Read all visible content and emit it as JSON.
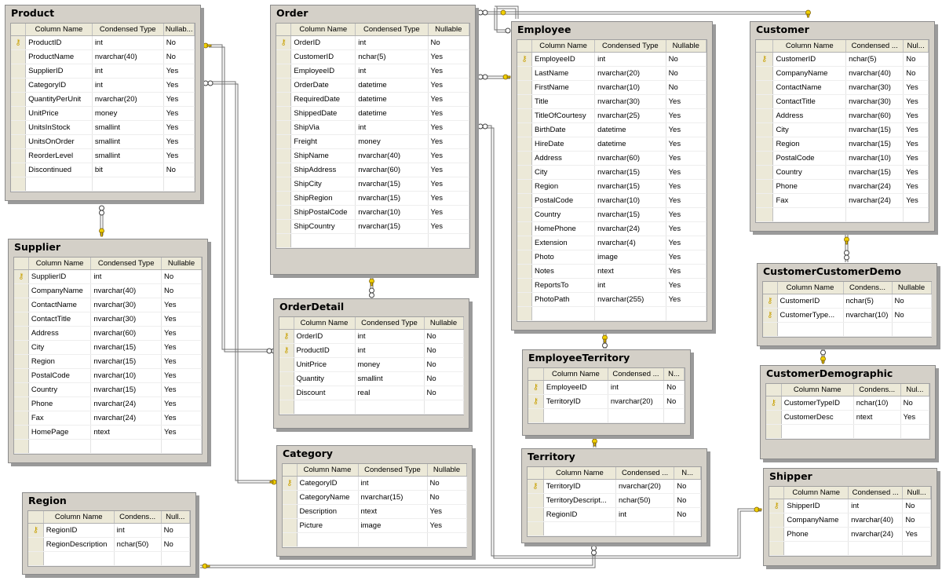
{
  "headers": [
    "Column Name",
    "Condensed Type",
    "Nullable"
  ],
  "key_icon": "primary-key-icon",
  "tables": [
    {
      "id": "product",
      "title": "Product",
      "headers": [
        "Column Name",
        "Condensed Type",
        "Nullab..."
      ],
      "rows": [
        [
          "ProductID",
          "int",
          "No",
          1
        ],
        [
          "ProductName",
          "nvarchar(40)",
          "No",
          0
        ],
        [
          "SupplierID",
          "int",
          "Yes",
          0
        ],
        [
          "CategoryID",
          "int",
          "Yes",
          0
        ],
        [
          "QuantityPerUnit",
          "nvarchar(20)",
          "Yes",
          0
        ],
        [
          "UnitPrice",
          "money",
          "Yes",
          0
        ],
        [
          "UnitsInStock",
          "smallint",
          "Yes",
          0
        ],
        [
          "UnitsOnOrder",
          "smallint",
          "Yes",
          0
        ],
        [
          "ReorderLevel",
          "smallint",
          "Yes",
          0
        ],
        [
          "Discontinued",
          "bit",
          "No",
          0
        ]
      ]
    },
    {
      "id": "order",
      "title": "Order",
      "headers": [
        "Column Name",
        "Condensed Type",
        "Nullable"
      ],
      "rows": [
        [
          "OrderID",
          "int",
          "No",
          1
        ],
        [
          "CustomerID",
          "nchar(5)",
          "Yes",
          0
        ],
        [
          "EmployeeID",
          "int",
          "Yes",
          0
        ],
        [
          "OrderDate",
          "datetime",
          "Yes",
          0
        ],
        [
          "RequiredDate",
          "datetime",
          "Yes",
          0
        ],
        [
          "ShippedDate",
          "datetime",
          "Yes",
          0
        ],
        [
          "ShipVia",
          "int",
          "Yes",
          0
        ],
        [
          "Freight",
          "money",
          "Yes",
          0
        ],
        [
          "ShipName",
          "nvarchar(40)",
          "Yes",
          0
        ],
        [
          "ShipAddress",
          "nvarchar(60)",
          "Yes",
          0
        ],
        [
          "ShipCity",
          "nvarchar(15)",
          "Yes",
          0
        ],
        [
          "ShipRegion",
          "nvarchar(15)",
          "Yes",
          0
        ],
        [
          "ShipPostalCode",
          "nvarchar(10)",
          "Yes",
          0
        ],
        [
          "ShipCountry",
          "nvarchar(15)",
          "Yes",
          0
        ]
      ]
    },
    {
      "id": "employee",
      "title": "Employee",
      "headers": [
        "Column Name",
        "Condensed Type",
        "Nullable"
      ],
      "rows": [
        [
          "EmployeeID",
          "int",
          "No",
          1
        ],
        [
          "LastName",
          "nvarchar(20)",
          "No",
          0
        ],
        [
          "FirstName",
          "nvarchar(10)",
          "No",
          0
        ],
        [
          "Title",
          "nvarchar(30)",
          "Yes",
          0
        ],
        [
          "TitleOfCourtesy",
          "nvarchar(25)",
          "Yes",
          0
        ],
        [
          "BirthDate",
          "datetime",
          "Yes",
          0
        ],
        [
          "HireDate",
          "datetime",
          "Yes",
          0
        ],
        [
          "Address",
          "nvarchar(60)",
          "Yes",
          0
        ],
        [
          "City",
          "nvarchar(15)",
          "Yes",
          0
        ],
        [
          "Region",
          "nvarchar(15)",
          "Yes",
          0
        ],
        [
          "PostalCode",
          "nvarchar(10)",
          "Yes",
          0
        ],
        [
          "Country",
          "nvarchar(15)",
          "Yes",
          0
        ],
        [
          "HomePhone",
          "nvarchar(24)",
          "Yes",
          0
        ],
        [
          "Extension",
          "nvarchar(4)",
          "Yes",
          0
        ],
        [
          "Photo",
          "image",
          "Yes",
          0
        ],
        [
          "Notes",
          "ntext",
          "Yes",
          0
        ],
        [
          "ReportsTo",
          "int",
          "Yes",
          0
        ],
        [
          "PhotoPath",
          "nvarchar(255)",
          "Yes",
          0
        ]
      ]
    },
    {
      "id": "customer",
      "title": "Customer",
      "headers": [
        "Column Name",
        "Condensed ...",
        "Nul..."
      ],
      "rows": [
        [
          "CustomerID",
          "nchar(5)",
          "No",
          1
        ],
        [
          "CompanyName",
          "nvarchar(40)",
          "No",
          0
        ],
        [
          "ContactName",
          "nvarchar(30)",
          "Yes",
          0
        ],
        [
          "ContactTitle",
          "nvarchar(30)",
          "Yes",
          0
        ],
        [
          "Address",
          "nvarchar(60)",
          "Yes",
          0
        ],
        [
          "City",
          "nvarchar(15)",
          "Yes",
          0
        ],
        [
          "Region",
          "nvarchar(15)",
          "Yes",
          0
        ],
        [
          "PostalCode",
          "nvarchar(10)",
          "Yes",
          0
        ],
        [
          "Country",
          "nvarchar(15)",
          "Yes",
          0
        ],
        [
          "Phone",
          "nvarchar(24)",
          "Yes",
          0
        ],
        [
          "Fax",
          "nvarchar(24)",
          "Yes",
          0
        ]
      ]
    },
    {
      "id": "supplier",
      "title": "Supplier",
      "headers": [
        "Column Name",
        "Condensed Type",
        "Nullable"
      ],
      "rows": [
        [
          "SupplierID",
          "int",
          "No",
          1
        ],
        [
          "CompanyName",
          "nvarchar(40)",
          "No",
          0
        ],
        [
          "ContactName",
          "nvarchar(30)",
          "Yes",
          0
        ],
        [
          "ContactTitle",
          "nvarchar(30)",
          "Yes",
          0
        ],
        [
          "Address",
          "nvarchar(60)",
          "Yes",
          0
        ],
        [
          "City",
          "nvarchar(15)",
          "Yes",
          0
        ],
        [
          "Region",
          "nvarchar(15)",
          "Yes",
          0
        ],
        [
          "PostalCode",
          "nvarchar(10)",
          "Yes",
          0
        ],
        [
          "Country",
          "nvarchar(15)",
          "Yes",
          0
        ],
        [
          "Phone",
          "nvarchar(24)",
          "Yes",
          0
        ],
        [
          "Fax",
          "nvarchar(24)",
          "Yes",
          0
        ],
        [
          "HomePage",
          "ntext",
          "Yes",
          0
        ]
      ]
    },
    {
      "id": "orderdetail",
      "title": "OrderDetail",
      "headers": [
        "Column Name",
        "Condensed Type",
        "Nullable"
      ],
      "rows": [
        [
          "OrderID",
          "int",
          "No",
          1
        ],
        [
          "ProductID",
          "int",
          "No",
          1
        ],
        [
          "UnitPrice",
          "money",
          "No",
          0
        ],
        [
          "Quantity",
          "smallint",
          "No",
          0
        ],
        [
          "Discount",
          "real",
          "No",
          0
        ]
      ]
    },
    {
      "id": "customercustomerdemo",
      "title": "CustomerCustomerDemo",
      "headers": [
        "Column Name",
        "Condens...",
        "Nullable"
      ],
      "rows": [
        [
          "CustomerID",
          "nchar(5)",
          "No",
          1
        ],
        [
          "CustomerType...",
          "nvarchar(10)",
          "No",
          1
        ]
      ]
    },
    {
      "id": "employeeterritory",
      "title": "EmployeeTerritory",
      "headers": [
        "Column Name",
        "Condensed ...",
        "N..."
      ],
      "rows": [
        [
          "EmployeeID",
          "int",
          "No",
          1
        ],
        [
          "TerritoryID",
          "nvarchar(20)",
          "No",
          1
        ]
      ]
    },
    {
      "id": "customerdemographic",
      "title": "CustomerDemographic",
      "headers": [
        "Column Name",
        "Condens...",
        "Nul..."
      ],
      "rows": [
        [
          "CustomerTypeID",
          "nchar(10)",
          "No",
          1
        ],
        [
          "CustomerDesc",
          "ntext",
          "Yes",
          0
        ]
      ]
    },
    {
      "id": "category",
      "title": "Category",
      "headers": [
        "Column Name",
        "Condensed Type",
        "Nullable"
      ],
      "rows": [
        [
          "CategoryID",
          "int",
          "No",
          1
        ],
        [
          "CategoryName",
          "nvarchar(15)",
          "No",
          0
        ],
        [
          "Description",
          "ntext",
          "Yes",
          0
        ],
        [
          "Picture",
          "image",
          "Yes",
          0
        ]
      ]
    },
    {
      "id": "territory",
      "title": "Territory",
      "headers": [
        "Column Name",
        "Condensed ...",
        "N..."
      ],
      "rows": [
        [
          "TerritoryID",
          "nvarchar(20)",
          "No",
          1
        ],
        [
          "TerritoryDescript...",
          "nchar(50)",
          "No",
          0
        ],
        [
          "RegionID",
          "int",
          "No",
          0
        ]
      ]
    },
    {
      "id": "shipper",
      "title": "Shipper",
      "headers": [
        "Column Name",
        "Condensed ...",
        "Null..."
      ],
      "rows": [
        [
          "ShipperID",
          "int",
          "No",
          1
        ],
        [
          "CompanyName",
          "nvarchar(40)",
          "No",
          0
        ],
        [
          "Phone",
          "nvarchar(24)",
          "Yes",
          0
        ]
      ]
    },
    {
      "id": "region",
      "title": "Region",
      "headers": [
        "Column Name",
        "Condens...",
        "Null..."
      ],
      "rows": [
        [
          "RegionID",
          "int",
          "No",
          1
        ],
        [
          "RegionDescription",
          "nchar(50)",
          "No",
          0
        ]
      ]
    }
  ]
}
